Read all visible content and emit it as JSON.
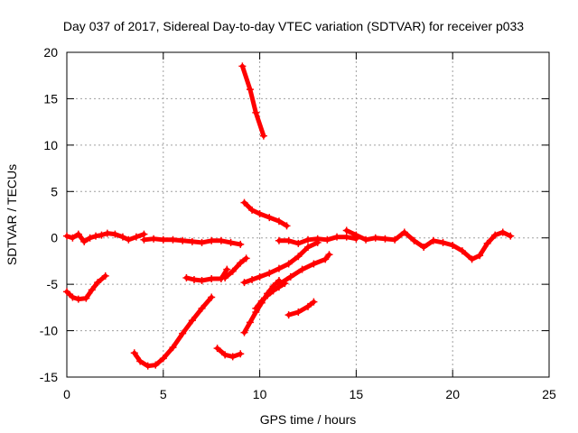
{
  "chart_data": {
    "type": "scatter",
    "title": "Day 037 of 2017, Sidereal Day-to-day VTEC variation (SDTVAR) for receiver p033",
    "xlabel": "GPS time / hours",
    "ylabel": "SDTVAR / TECUs",
    "xlim": [
      0,
      25
    ],
    "ylim": [
      -15,
      20
    ],
    "xticks": [
      0,
      5,
      10,
      15,
      20,
      25
    ],
    "yticks": [
      -15,
      -10,
      -5,
      0,
      5,
      10,
      15,
      20
    ],
    "grid": true,
    "marker": "plus",
    "color": "#ff0000",
    "series": [
      {
        "x": [
          0.0,
          0.3,
          0.6,
          0.9,
          1.2,
          1.5,
          1.8,
          2.1,
          2.5,
          2.9,
          3.2,
          3.6,
          4.0
        ],
        "y": [
          0.2,
          0.0,
          0.4,
          -0.4,
          0.0,
          0.2,
          0.3,
          0.5,
          0.4,
          0.1,
          -0.2,
          0.1,
          0.4
        ]
      },
      {
        "x": [
          4.0,
          4.5,
          5.0,
          5.5,
          6.0,
          6.5,
          7.0,
          7.5,
          8.0,
          8.5,
          9.0
        ],
        "y": [
          -0.2,
          -0.1,
          -0.2,
          -0.2,
          -0.3,
          -0.4,
          -0.5,
          -0.3,
          -0.3,
          -0.5,
          -0.7
        ]
      },
      {
        "x": [
          0.0,
          0.3,
          0.6,
          1.0,
          1.3,
          1.6,
          2.0
        ],
        "y": [
          -5.8,
          -6.4,
          -6.6,
          -6.5,
          -5.6,
          -4.8,
          -4.1
        ]
      },
      {
        "x": [
          3.5,
          3.8,
          4.2,
          4.6,
          5.0,
          5.5,
          6.0,
          6.5,
          7.0,
          7.5
        ],
        "y": [
          -12.4,
          -13.3,
          -13.8,
          -13.7,
          -13.0,
          -11.8,
          -10.3,
          -8.9,
          -7.6,
          -6.4
        ]
      },
      {
        "x": [
          6.2,
          6.6,
          7.0,
          7.5,
          8.0,
          8.3
        ],
        "y": [
          -4.3,
          -4.5,
          -4.6,
          -4.4,
          -4.4,
          -3.4
        ]
      },
      {
        "x": [
          7.8,
          8.2,
          8.6,
          9.0
        ],
        "y": [
          -11.9,
          -12.6,
          -12.8,
          -12.5
        ]
      },
      {
        "x": [
          8.2,
          8.6,
          9.0,
          9.3
        ],
        "y": [
          -4.3,
          -3.6,
          -2.7,
          -2.2
        ]
      },
      {
        "x": [
          9.1,
          9.5,
          9.8,
          10.2
        ],
        "y": [
          18.5,
          16.0,
          13.5,
          11.0
        ]
      },
      {
        "x": [
          9.2,
          9.6,
          10.0,
          10.5,
          11.0,
          11.4
        ],
        "y": [
          3.8,
          3.0,
          2.6,
          2.2,
          1.8,
          1.3
        ]
      },
      {
        "x": [
          9.2,
          9.6,
          10.0,
          10.5,
          11.0,
          11.5,
          12.0,
          12.5,
          13.0
        ],
        "y": [
          -4.8,
          -4.5,
          -4.2,
          -3.8,
          -3.3,
          -2.8,
          -2.0,
          -1.0,
          -0.5
        ]
      },
      {
        "x": [
          9.2,
          9.5,
          9.8,
          10.1,
          10.4,
          10.7,
          11.0
        ],
        "y": [
          -10.2,
          -9.1,
          -8.0,
          -7.0,
          -6.0,
          -5.2,
          -4.6
        ]
      },
      {
        "x": [
          9.8,
          10.1,
          10.4,
          10.7,
          11.0,
          11.3
        ],
        "y": [
          -7.6,
          -6.8,
          -6.2,
          -5.7,
          -5.3,
          -4.9
        ]
      },
      {
        "x": [
          11.0,
          11.6,
          12.2,
          12.8,
          13.4,
          13.6
        ],
        "y": [
          -5.0,
          -4.2,
          -3.4,
          -2.8,
          -2.3,
          -1.8
        ]
      },
      {
        "x": [
          11.5,
          12.0,
          12.5,
          12.8
        ],
        "y": [
          -8.3,
          -8.0,
          -7.4,
          -6.9
        ]
      },
      {
        "x": [
          11.0,
          11.5,
          12.0,
          12.5,
          13.0,
          13.5,
          14.0,
          14.5,
          15.0
        ],
        "y": [
          -0.3,
          -0.3,
          -0.6,
          -0.2,
          -0.1,
          -0.2,
          0.1,
          0.1,
          -0.1
        ]
      },
      {
        "x": [
          14.5,
          15.0,
          15.5,
          16.0,
          16.5,
          17.0,
          17.5,
          18.0,
          18.5,
          19.0,
          19.5,
          20.0,
          20.5,
          21.0,
          21.4,
          21.8,
          22.2,
          22.6,
          23.0
        ],
        "y": [
          0.8,
          0.3,
          -0.2,
          0.0,
          -0.1,
          -0.2,
          0.6,
          -0.3,
          -1.0,
          -0.3,
          -0.5,
          -0.8,
          -1.4,
          -2.3,
          -1.9,
          -0.6,
          0.3,
          0.6,
          0.2
        ]
      }
    ]
  }
}
